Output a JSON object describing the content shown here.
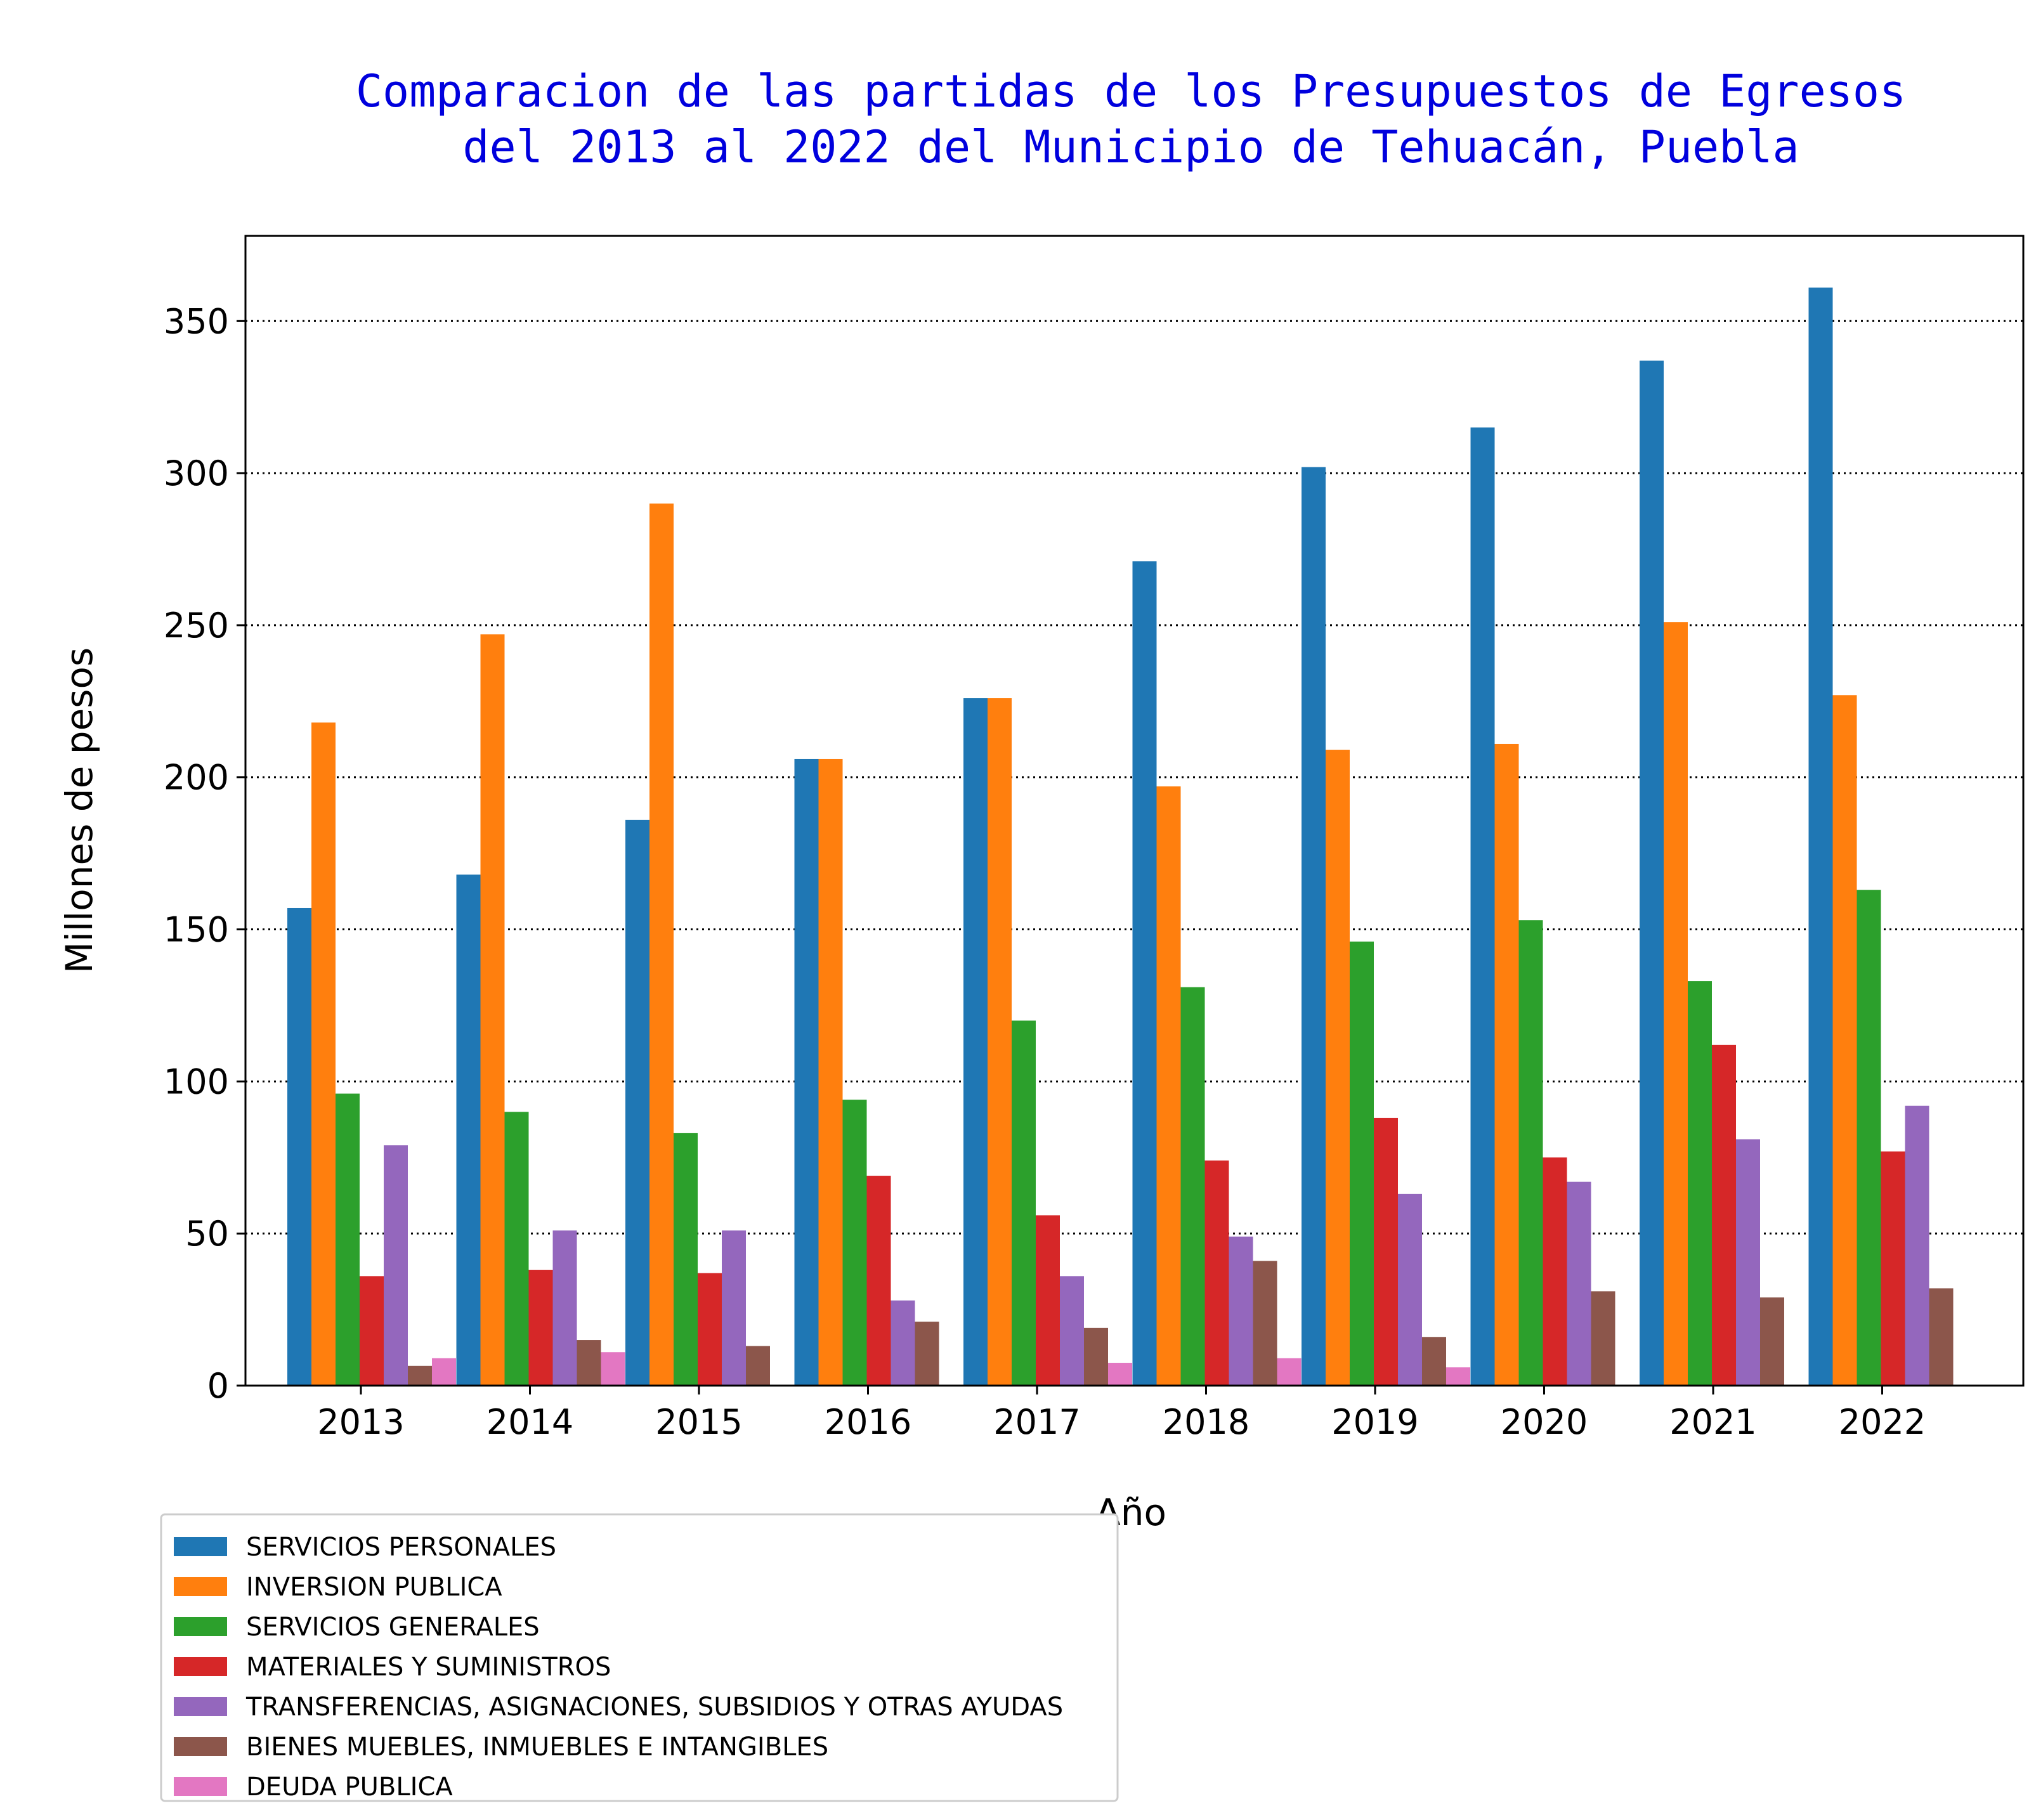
{
  "chart_data": {
    "type": "bar",
    "title": "Comparacion de las partidas  de los Presupuestos de Egresos\ndel 2013 al 2022 del Municipio de Tehuacán, Puebla",
    "xlabel": "Año",
    "ylabel": "Millones de pesos",
    "ylim": [
      0,
      378
    ],
    "yticks": [
      0,
      50,
      100,
      150,
      200,
      250,
      300,
      350
    ],
    "grid": "horizontal dotted",
    "legend_position": "below-left",
    "categories": [
      "2013",
      "2014",
      "2015",
      "2016",
      "2017",
      "2018",
      "2019",
      "2020",
      "2021",
      "2022"
    ],
    "series": [
      {
        "name": "SERVICIOS PERSONALES",
        "color": "#1f77b4",
        "values": [
          157,
          168,
          186,
          206,
          226,
          271,
          302,
          315,
          337,
          361
        ]
      },
      {
        "name": "INVERSION PUBLICA",
        "color": "#ff7f0e",
        "values": [
          218,
          247,
          290,
          206,
          226,
          197,
          209,
          211,
          251,
          227
        ]
      },
      {
        "name": "SERVICIOS GENERALES",
        "color": "#2ca02c",
        "values": [
          96,
          90,
          83,
          94,
          120,
          131,
          146,
          153,
          133,
          163
        ]
      },
      {
        "name": "MATERIALES Y SUMINISTROS",
        "color": "#d62728",
        "values": [
          36,
          38,
          37,
          69,
          56,
          74,
          88,
          75,
          112,
          77
        ]
      },
      {
        "name": "TRANSFERENCIAS, ASIGNACIONES, SUBSIDIOS Y OTRAS AYUDAS",
        "color": "#9467bd",
        "values": [
          79,
          51,
          51,
          28,
          36,
          49,
          63,
          67,
          81,
          92
        ]
      },
      {
        "name": "BIENES MUEBLES, INMUEBLES E INTANGIBLES",
        "color": "#8c564b",
        "values": [
          6.5,
          15,
          13,
          21,
          19,
          41,
          16,
          31,
          29,
          32
        ]
      },
      {
        "name": "DEUDA PUBLICA",
        "color": "#e377c2",
        "values": [
          9,
          11,
          0,
          0,
          7.5,
          9,
          6,
          0,
          0,
          0
        ]
      }
    ]
  },
  "colors": {
    "title": "#0000dd",
    "grid": "#000000",
    "axis": "#000000",
    "legend_border": "#cccccc"
  }
}
